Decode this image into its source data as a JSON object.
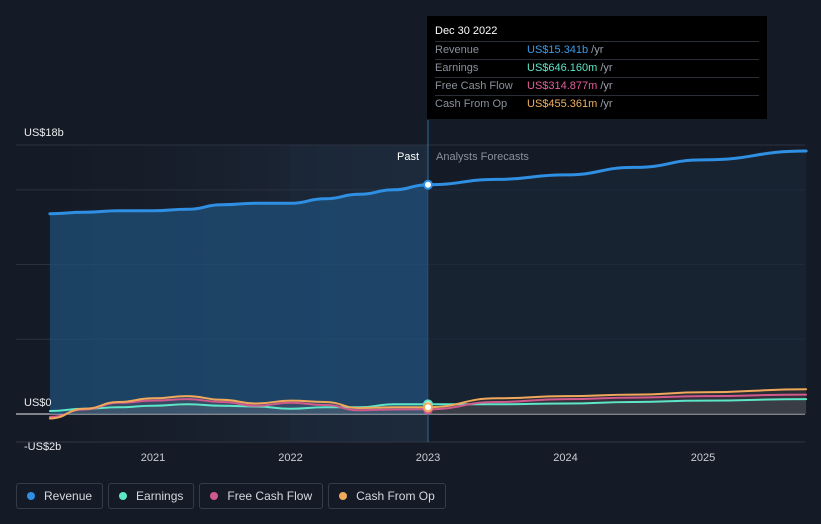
{
  "tooltip": {
    "date": "Dec 30 2022",
    "rows": [
      {
        "label": "Revenue",
        "value": "US$15.341b",
        "unit": "/yr",
        "color": "#3b9be8"
      },
      {
        "label": "Earnings",
        "value": "US$646.160m",
        "unit": "/yr",
        "color": "#5ee6c8"
      },
      {
        "label": "Free Cash Flow",
        "value": "US$314.877m",
        "unit": "/yr",
        "color": "#e0609a"
      },
      {
        "label": "Cash From Op",
        "value": "US$455.361m",
        "unit": "/yr",
        "color": "#f0b060"
      }
    ]
  },
  "labels": {
    "past": "Past",
    "forecast": "Analysts Forecasts"
  },
  "legend": [
    {
      "label": "Revenue",
      "color": "#2f8fe3"
    },
    {
      "label": "Earnings",
      "color": "#5ee6c8"
    },
    {
      "label": "Free Cash Flow",
      "color": "#d05a8e"
    },
    {
      "label": "Cash From Op",
      "color": "#f0a85a"
    }
  ],
  "chart_data": {
    "type": "line",
    "y_tick_labels": [
      {
        "value": 18,
        "label": "US$18b"
      },
      {
        "value": 0,
        "label": "US$0"
      },
      {
        "value": -2,
        "label": "-US$2b"
      }
    ],
    "ylim": [
      -2,
      18
    ],
    "xlim": [
      2020.25,
      2025.75
    ],
    "x_ticks": [
      2021,
      2022,
      2023,
      2024,
      2025
    ],
    "x_tick_labels": [
      "2021",
      "2022",
      "2023",
      "2024",
      "2025"
    ],
    "past_end": 2023.0,
    "highlight_x": 2023.0,
    "series": [
      {
        "name": "Revenue",
        "color": "#2f8fe3",
        "area": true,
        "x": [
          2020.25,
          2020.5,
          2020.75,
          2021.0,
          2021.25,
          2021.5,
          2021.75,
          2022.0,
          2022.25,
          2022.5,
          2022.75,
          2023.0,
          2023.5,
          2024.0,
          2024.5,
          2025.0,
          2025.75
        ],
        "y": [
          13.4,
          13.5,
          13.6,
          13.6,
          13.7,
          14.0,
          14.1,
          14.1,
          14.4,
          14.7,
          15.0,
          15.341,
          15.7,
          16.0,
          16.5,
          17.0,
          17.6
        ]
      },
      {
        "name": "Earnings",
        "color": "#5ee6c8",
        "x": [
          2020.25,
          2020.5,
          2020.75,
          2021.0,
          2021.25,
          2021.5,
          2021.75,
          2022.0,
          2022.25,
          2022.5,
          2022.75,
          2023.0,
          2023.5,
          2024.0,
          2024.5,
          2025.0,
          2025.75
        ],
        "y": [
          0.2,
          0.35,
          0.45,
          0.55,
          0.65,
          0.55,
          0.5,
          0.35,
          0.45,
          0.45,
          0.65,
          0.646,
          0.65,
          0.7,
          0.8,
          0.9,
          1.0
        ]
      },
      {
        "name": "Free Cash Flow",
        "color": "#d05a8e",
        "x": [
          2020.25,
          2020.5,
          2020.75,
          2021.0,
          2021.25,
          2021.5,
          2021.75,
          2022.0,
          2022.25,
          2022.5,
          2022.75,
          2023.0,
          2023.5,
          2024.0,
          2024.5,
          2025.0,
          2025.75
        ],
        "y": [
          -0.2,
          0.3,
          0.75,
          0.9,
          1.0,
          0.8,
          0.55,
          0.75,
          0.6,
          0.25,
          0.3,
          0.315,
          0.8,
          1.0,
          1.1,
          1.2,
          1.3
        ]
      },
      {
        "name": "Cash From Op",
        "color": "#f0a85a",
        "x": [
          2020.25,
          2020.5,
          2020.75,
          2021.0,
          2021.25,
          2021.5,
          2021.75,
          2022.0,
          2022.25,
          2022.5,
          2022.75,
          2023.0,
          2023.5,
          2024.0,
          2024.5,
          2025.0,
          2025.75
        ],
        "y": [
          -0.3,
          0.35,
          0.8,
          1.05,
          1.2,
          0.95,
          0.7,
          0.9,
          0.8,
          0.4,
          0.45,
          0.455,
          1.05,
          1.2,
          1.3,
          1.45,
          1.65
        ]
      }
    ]
  }
}
